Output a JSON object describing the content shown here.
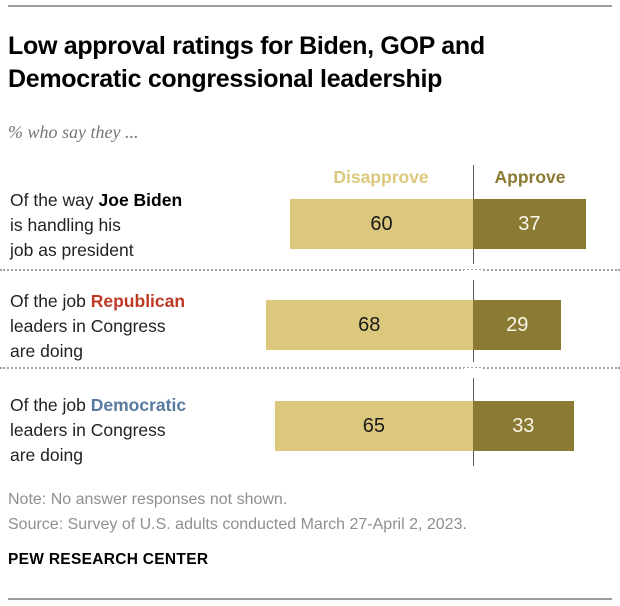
{
  "header": {
    "title_lines": [
      "Low approval ratings for Biden, GOP and",
      "Democratic congressional leadership"
    ],
    "subtitle": "% who say they ..."
  },
  "chart_data": {
    "type": "bar",
    "orientation": "horizontal-diverging",
    "legend": {
      "left": "Disapprove",
      "right": "Approve"
    },
    "unit": "percent",
    "axis_note": "bars diverge from a shared center divider; ~3.05 px per percentage point",
    "colors": {
      "disapprove_bar": "#dcc87c",
      "approve_bar": "#8b7a33",
      "divider": "#58585a"
    },
    "rows": [
      {
        "label_line1_prefix": "Of the way ",
        "label_highlight": "Joe Biden",
        "highlight_color": "#000000",
        "label_line2": "is handling his",
        "label_line3": "job as president",
        "disapprove": 60,
        "approve": 37
      },
      {
        "label_line1_prefix": "Of the job ",
        "label_highlight": "Republican",
        "highlight_color": "#bf3927",
        "label_line2": "leaders in Congress",
        "label_line3": "are doing",
        "disapprove": 68,
        "approve": 29
      },
      {
        "label_line1_prefix": "Of the job ",
        "label_highlight": "Democratic",
        "highlight_color": "#5879a0",
        "label_line2": "leaders in Congress",
        "label_line3": "are doing",
        "disapprove": 65,
        "approve": 33
      }
    ]
  },
  "footer": {
    "note": "Note: No answer responses not shown.",
    "source": "Source: Survey of U.S. adults conducted March 27-April 2, 2023.",
    "brand": "PEW RESEARCH CENTER"
  }
}
